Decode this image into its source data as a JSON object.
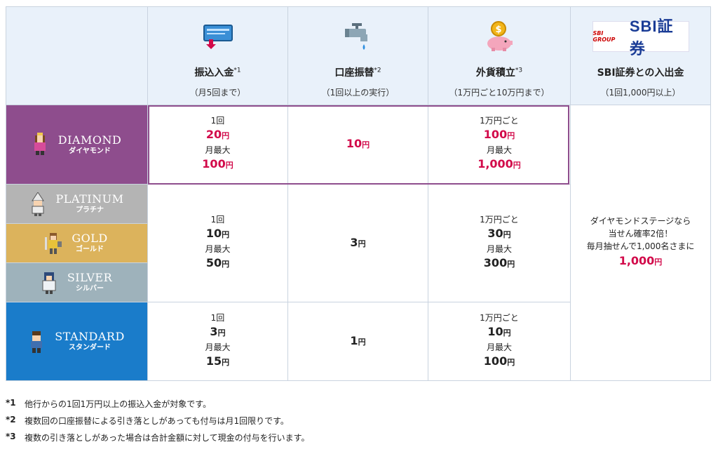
{
  "columns": [
    {
      "title": "振込入金",
      "mark": "*1",
      "sub": "（月5回まで）",
      "icon": "card-deposit-icon"
    },
    {
      "title": "口座振替",
      "mark": "*2",
      "sub": "（1回以上の実行）",
      "icon": "faucet-icon"
    },
    {
      "title": "外貨積立",
      "mark": "*3",
      "sub": "（1万円ごと10万円まで）",
      "icon": "piggy-bank-icon"
    },
    {
      "title": "SBI証券との入出金",
      "mark": "",
      "sub": "（1回1,000円以上）",
      "icon": "sbi-logo",
      "logo_text": "SBI証券",
      "logo_small": "SBI GROUP"
    }
  ],
  "tiers": [
    {
      "en": "DIAMOND",
      "jp": "ダイヤモンド",
      "color": "#8e4d8d"
    },
    {
      "en": "PLATINUM",
      "jp": "プラチナ",
      "color": "#b4b4b4"
    },
    {
      "en": "GOLD",
      "jp": "ゴールド",
      "color": "#dcb35c"
    },
    {
      "en": "SILVER",
      "jp": "シルバー",
      "color": "#9eb2bb"
    },
    {
      "en": "STANDARD",
      "jp": "スタンダード",
      "color": "#1a7cca"
    }
  ],
  "cells": {
    "diamond": {
      "deposit": {
        "l1": "1回",
        "v1": "20",
        "l2": "月最大",
        "v2": "100"
      },
      "transfer": {
        "v1": "10"
      },
      "fx": {
        "l1": "1万円ごと",
        "v1": "100",
        "l2": "月最大",
        "v2": "1,000"
      }
    },
    "mid": {
      "deposit": {
        "l1": "1回",
        "v1": "10",
        "l2": "月最大",
        "v2": "50"
      },
      "transfer": {
        "v1": "3"
      },
      "fx": {
        "l1": "1万円ごと",
        "v1": "30",
        "l2": "月最大",
        "v2": "300"
      }
    },
    "standard": {
      "deposit": {
        "l1": "1回",
        "v1": "3",
        "l2": "月最大",
        "v2": "15"
      },
      "transfer": {
        "v1": "1"
      },
      "fx": {
        "l1": "1万円ごと",
        "v1": "10",
        "l2": "月最大",
        "v2": "100"
      }
    },
    "sbi": {
      "line1": "ダイヤモンドステージなら",
      "line2": "当せん確率2倍！",
      "line3": "毎月抽せんで1,000名さまに",
      "v1": "1,000"
    }
  },
  "yen": "円",
  "notes": [
    {
      "mark": "*1",
      "text": "他行からの1回1万円以上の振込入金が対象です。"
    },
    {
      "mark": "*2",
      "text": "複数回の口座振替による引き落としがあっても付与は月1回限りです。"
    },
    {
      "mark": "*3",
      "text": "複数の引き落としがあった場合は合計金額に対して現金の付与を行います。"
    }
  ],
  "colors": {
    "accent_red": "#d20a4a",
    "header_bg": "#e9f1fa",
    "border": "#c9d3df"
  }
}
